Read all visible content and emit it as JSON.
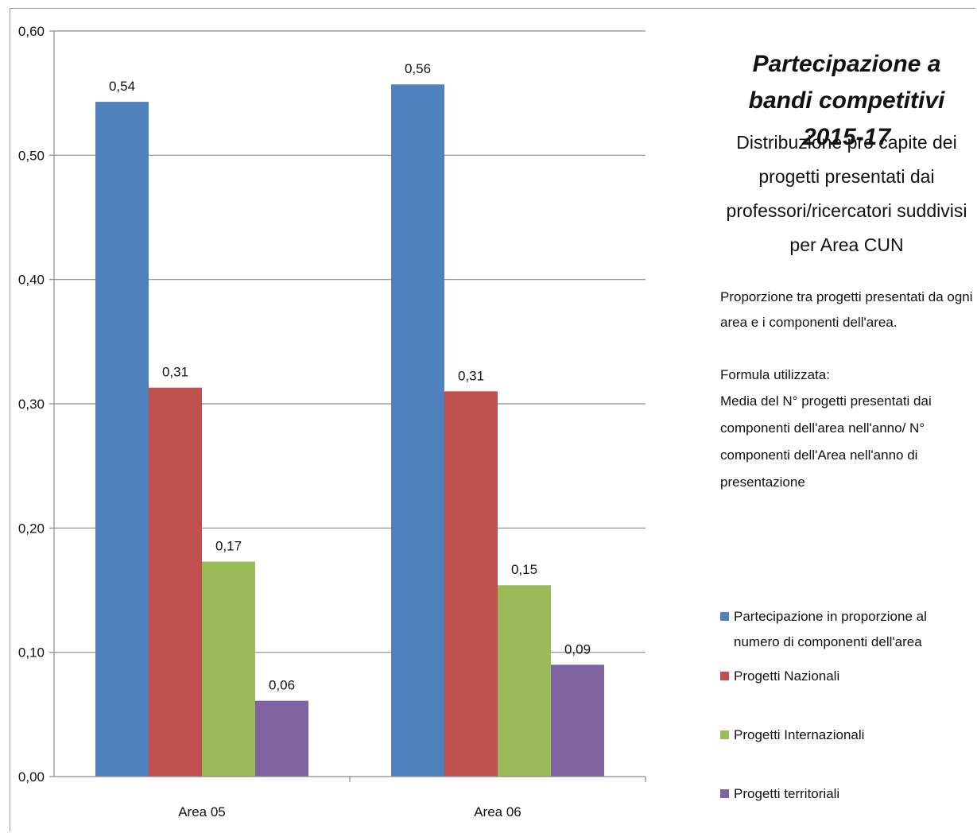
{
  "title": "Partecipazione a bandi competitivi 2015-17",
  "subtitle": "Distribuzione pro capite dei progetti presentati dai professori/ricercatori suddivisi per Area  CUN",
  "note1": "Proporzione tra  progetti presentati da ogni area e i componenti dell'area.",
  "note2_heading": "Formula utilizzata:",
  "note2_body": "Media del N° progetti presentati dai componenti dell'area nell'anno/ N° componenti dell'Area nell'anno di presentazione",
  "chart_data": {
    "type": "bar",
    "categories": [
      "Area 05",
      "Area 06"
    ],
    "series": [
      {
        "name": "Partecipazione in proporzione al numero di componenti dell'area",
        "color": "#4f81bd",
        "values": [
          0.543,
          0.557
        ],
        "labels": [
          "0,54",
          "0,56"
        ]
      },
      {
        "name": "Progetti Nazionali",
        "color": "#c0504d",
        "values": [
          0.313,
          0.31
        ],
        "labels": [
          "0,31",
          "0,31"
        ]
      },
      {
        "name": "Progetti Internazionali",
        "color": "#9bbb59",
        "values": [
          0.173,
          0.154
        ],
        "labels": [
          "0,17",
          "0,15"
        ]
      },
      {
        "name": "Progetti territoriali",
        "color": "#8064a2",
        "values": [
          0.061,
          0.09
        ],
        "labels": [
          "0,06",
          "0,09"
        ]
      }
    ],
    "ylim": [
      0,
      0.6
    ],
    "yticks": [
      0,
      0.1,
      0.2,
      0.3,
      0.4,
      0.5,
      0.6
    ],
    "ytick_labels": [
      "0,00",
      "0,10",
      "0,20",
      "0,30",
      "0,40",
      "0,50",
      "0,60"
    ],
    "grid": true,
    "legend_position": "right"
  }
}
